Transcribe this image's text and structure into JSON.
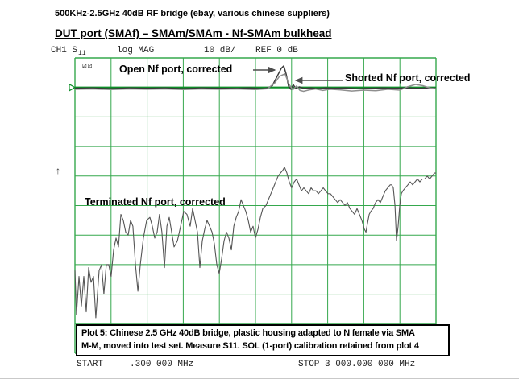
{
  "header": {
    "caption": "500KHz-2.5GHz 40dB RF bridge (ebay, various chinese suppliers)",
    "title": "DUT port (SMAf) – SMAm/SMAm - Nf-SMAm bulkhead"
  },
  "status_bar": {
    "channel": "CH1 S",
    "s_param_subscript": "11",
    "format": "log MAG",
    "scale": "10 dB/",
    "reference": "REF 0 dB"
  },
  "annotations": {
    "open_label": "Open Nf port, corrected",
    "shorted_label": "Shorted Nf port, corrected",
    "terminated_label": "Terminated Nf port, corrected",
    "status_glyph": "⧄⧄",
    "left_marker_glyph": "↑"
  },
  "note": {
    "line1": "Plot 5: Chinese 2.5 GHz 40dB bridge, plastic housing adapted to N female via SMA",
    "line2": "M-M, moved into test set. Measure S11. SOL (1-port) calibration retained from plot 4"
  },
  "axis": {
    "start_label": "START     .300 000 MHz",
    "stop_label": "STOP 3 000.000 000 MHz"
  },
  "colors": {
    "grid_green": "#35a84d",
    "ref_line_green": "#0e8f28",
    "trace_open": "#3a3a3a",
    "trace_shorted": "#8f8f8f",
    "trace_terminated": "#555555"
  },
  "chart_data": {
    "type": "line",
    "title": "S11 log MAG, 10 dB/div, REF 0 dB",
    "x_axis": {
      "label_start": "START .300 000 MHz",
      "label_stop": "STOP 3 000.000 000 MHz",
      "unit": "MHz"
    },
    "x_range_mhz": [
      0.3,
      3000
    ],
    "y_axis": {
      "format": "log MAG",
      "scale_db_per_div": 10,
      "ref_db": 0,
      "ylim": [
        -90,
        10
      ],
      "unit": "dB"
    },
    "grid": {
      "x_divisions": 10,
      "y_divisions": 10
    },
    "legend_position": "inline-annotations",
    "series": [
      {
        "name": "Open Nf port, corrected",
        "color": "#3a3a3a",
        "points": [
          [
            0,
            -0.3
          ],
          [
            150,
            -0.2
          ],
          [
            300,
            -0.4
          ],
          [
            450,
            -0.2
          ],
          [
            600,
            -0.3
          ],
          [
            750,
            -0.2
          ],
          [
            900,
            -0.4
          ],
          [
            1050,
            -0.2
          ],
          [
            1200,
            -0.3
          ],
          [
            1350,
            -0.3
          ],
          [
            1450,
            -0.2
          ],
          [
            1550,
            -0.4
          ],
          [
            1600,
            -0.2
          ],
          [
            1640,
            0.6
          ],
          [
            1680,
            3.8
          ],
          [
            1715,
            6.5
          ],
          [
            1735,
            7.3
          ],
          [
            1755,
            4.5
          ],
          [
            1775,
            0.5
          ],
          [
            1795,
            -0.6
          ],
          [
            1815,
            0.9
          ],
          [
            1835,
            -0.4
          ],
          [
            1865,
            0.2
          ],
          [
            1900,
            -0.3
          ],
          [
            1960,
            -0.2
          ],
          [
            2020,
            -0.4
          ],
          [
            2080,
            -0.2
          ],
          [
            2150,
            -0.3
          ],
          [
            2250,
            -0.2
          ],
          [
            2350,
            -0.4
          ],
          [
            2450,
            -0.3
          ],
          [
            2550,
            -0.2
          ],
          [
            2650,
            -0.3
          ],
          [
            2750,
            -0.2
          ],
          [
            2850,
            -0.3
          ],
          [
            2950,
            -0.2
          ],
          [
            3000,
            -0.3
          ]
        ]
      },
      {
        "name": "Shorted Nf port, corrected",
        "color": "#8f8f8f",
        "points": [
          [
            0,
            -0.6
          ],
          [
            150,
            -0.5
          ],
          [
            300,
            -0.7
          ],
          [
            450,
            -0.5
          ],
          [
            600,
            -0.6
          ],
          [
            750,
            -0.5
          ],
          [
            900,
            -0.7
          ],
          [
            1050,
            -0.5
          ],
          [
            1200,
            -0.6
          ],
          [
            1350,
            -0.5
          ],
          [
            1500,
            -0.7
          ],
          [
            1600,
            -0.4
          ],
          [
            1660,
            1.5
          ],
          [
            1700,
            3.8
          ],
          [
            1745,
            4.6
          ],
          [
            1780,
            1.0
          ],
          [
            1810,
            -0.8
          ],
          [
            1840,
            0.5
          ],
          [
            1870,
            -1.0
          ],
          [
            1900,
            -1.3
          ],
          [
            1950,
            -0.8
          ],
          [
            2000,
            -0.5
          ],
          [
            2060,
            -1.0
          ],
          [
            2120,
            -0.6
          ],
          [
            2200,
            -0.8
          ],
          [
            2300,
            -1.2
          ],
          [
            2400,
            -0.9
          ],
          [
            2500,
            -1.1
          ],
          [
            2600,
            -0.6
          ],
          [
            2700,
            -0.9
          ],
          [
            2760,
            0.2
          ],
          [
            2830,
            1.0
          ],
          [
            2890,
            0.6
          ],
          [
            2950,
            -0.2
          ],
          [
            3000,
            -0.4
          ]
        ]
      },
      {
        "name": "Terminated Nf port, corrected",
        "color": "#555555",
        "points": [
          [
            0,
            -62
          ],
          [
            13,
            -77
          ],
          [
            34,
            -64
          ],
          [
            54,
            -74
          ],
          [
            74,
            -64
          ],
          [
            94,
            -76
          ],
          [
            114,
            -61
          ],
          [
            134,
            -66
          ],
          [
            154,
            -64
          ],
          [
            174,
            -78
          ],
          [
            201,
            -62
          ],
          [
            221,
            -60
          ],
          [
            241,
            -70
          ],
          [
            261,
            -60
          ],
          [
            281,
            -60
          ],
          [
            301,
            -64
          ],
          [
            322,
            -55
          ],
          [
            342,
            -51
          ],
          [
            362,
            -54
          ],
          [
            382,
            -43
          ],
          [
            402,
            -45
          ],
          [
            422,
            -49
          ],
          [
            442,
            -50
          ],
          [
            462,
            -45
          ],
          [
            482,
            -47
          ],
          [
            503,
            -60
          ],
          [
            523,
            -69
          ],
          [
            543,
            -60
          ],
          [
            569,
            -51
          ],
          [
            596,
            -45
          ],
          [
            623,
            -44
          ],
          [
            643,
            -47
          ],
          [
            663,
            -51
          ],
          [
            683,
            -49
          ],
          [
            703,
            -43
          ],
          [
            723,
            -49
          ],
          [
            744,
            -61
          ],
          [
            764,
            -47
          ],
          [
            784,
            -44
          ],
          [
            804,
            -49
          ],
          [
            824,
            -54
          ],
          [
            851,
            -52
          ],
          [
            878,
            -47
          ],
          [
            904,
            -42
          ],
          [
            931,
            -43
          ],
          [
            958,
            -47
          ],
          [
            978,
            -41
          ],
          [
            998,
            -45
          ],
          [
            1018,
            -49
          ],
          [
            1038,
            -61
          ],
          [
            1058,
            -52
          ],
          [
            1078,
            -48
          ],
          [
            1098,
            -45
          ],
          [
            1119,
            -47
          ],
          [
            1139,
            -49
          ],
          [
            1159,
            -53
          ],
          [
            1179,
            -60
          ],
          [
            1199,
            -63
          ],
          [
            1219,
            -58
          ],
          [
            1239,
            -52
          ],
          [
            1259,
            -49
          ],
          [
            1279,
            -51
          ],
          [
            1300,
            -55
          ],
          [
            1320,
            -47
          ],
          [
            1340,
            -44
          ],
          [
            1360,
            -42
          ],
          [
            1380,
            -38
          ],
          [
            1400,
            -40
          ],
          [
            1420,
            -42
          ],
          [
            1440,
            -45
          ],
          [
            1460,
            -49
          ],
          [
            1480,
            -47
          ],
          [
            1500,
            -51
          ],
          [
            1521,
            -48
          ],
          [
            1541,
            -44
          ],
          [
            1561,
            -41
          ],
          [
            1587,
            -40
          ],
          [
            1607,
            -38
          ],
          [
            1628,
            -36
          ],
          [
            1648,
            -34
          ],
          [
            1668,
            -32
          ],
          [
            1688,
            -30
          ],
          [
            1708,
            -29
          ],
          [
            1728,
            -28
          ],
          [
            1741,
            -27
          ],
          [
            1761,
            -29
          ],
          [
            1781,
            -32
          ],
          [
            1801,
            -34
          ],
          [
            1822,
            -32
          ],
          [
            1842,
            -31
          ],
          [
            1862,
            -33
          ],
          [
            1882,
            -35
          ],
          [
            1902,
            -34
          ],
          [
            1922,
            -35
          ],
          [
            1942,
            -36
          ],
          [
            1962,
            -34
          ],
          [
            1982,
            -35
          ],
          [
            2003,
            -35
          ],
          [
            2023,
            -36
          ],
          [
            2043,
            -35
          ],
          [
            2063,
            -34
          ],
          [
            2083,
            -35
          ],
          [
            2103,
            -36
          ],
          [
            2123,
            -36
          ],
          [
            2143,
            -37
          ],
          [
            2163,
            -38
          ],
          [
            2183,
            -39
          ],
          [
            2204,
            -38
          ],
          [
            2224,
            -39
          ],
          [
            2244,
            -40
          ],
          [
            2264,
            -39
          ],
          [
            2284,
            -41
          ],
          [
            2304,
            -42
          ],
          [
            2324,
            -43
          ],
          [
            2344,
            -41
          ],
          [
            2364,
            -43
          ],
          [
            2384,
            -45
          ],
          [
            2405,
            -48
          ],
          [
            2418,
            -49
          ],
          [
            2431,
            -46
          ],
          [
            2445,
            -43
          ],
          [
            2458,
            -42
          ],
          [
            2478,
            -41
          ],
          [
            2498,
            -39
          ],
          [
            2518,
            -38
          ],
          [
            2538,
            -39
          ],
          [
            2558,
            -37
          ],
          [
            2579,
            -35
          ],
          [
            2599,
            -34
          ],
          [
            2619,
            -33
          ],
          [
            2632,
            -33
          ],
          [
            2645,
            -34
          ],
          [
            2659,
            -40
          ],
          [
            2672,
            -52
          ],
          [
            2685,
            -47
          ],
          [
            2699,
            -40
          ],
          [
            2712,
            -36
          ],
          [
            2725,
            -35
          ],
          [
            2745,
            -34
          ],
          [
            2766,
            -33
          ],
          [
            2786,
            -32
          ],
          [
            2806,
            -33
          ],
          [
            2826,
            -32
          ],
          [
            2846,
            -31
          ],
          [
            2866,
            -32
          ],
          [
            2886,
            -31
          ],
          [
            2906,
            -31
          ],
          [
            2927,
            -30
          ],
          [
            2947,
            -31
          ],
          [
            2967,
            -30
          ],
          [
            2987,
            -29
          ],
          [
            3000,
            -29
          ]
        ]
      }
    ]
  }
}
